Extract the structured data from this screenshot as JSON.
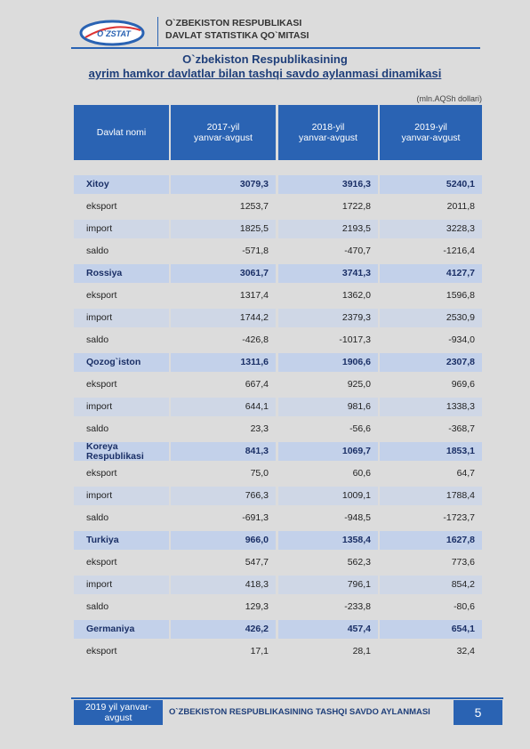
{
  "header": {
    "logo": "O`ZSTAT",
    "org_line1": "O`ZBEKISTON RESPUBLIKASI",
    "org_line2": "DAVLAT STATISTIKA QO`MITASI"
  },
  "title": {
    "line1": "O`zbekiston Respublikasining",
    "line2": "ayrim hamkor davlatlar bilan tashqi savdo aylanmasi dinamikasi"
  },
  "unit": "(mln.AQSh dollari)",
  "table": {
    "columns": [
      [
        "Davlat nomi"
      ],
      [
        "2017-yil",
        "yanvar-avgust"
      ],
      [
        "2018-yil",
        "yanvar-avgust"
      ],
      [
        "2019-yil",
        "yanvar-avgust"
      ]
    ],
    "rows": [
      [
        "Xitoy",
        "3079,3",
        "3916,3",
        "5240,1"
      ],
      [
        "eksport",
        "1253,7",
        "1722,8",
        "2011,8"
      ],
      [
        "import",
        "1825,5",
        "2193,5",
        "3228,3"
      ],
      [
        "saldo",
        "-571,8",
        "-470,7",
        "-1216,4"
      ],
      [
        "Rossiya",
        "3061,7",
        "3741,3",
        "4127,7"
      ],
      [
        "eksport",
        "1317,4",
        "1362,0",
        "1596,8"
      ],
      [
        "import",
        "1744,2",
        "2379,3",
        "2530,9"
      ],
      [
        "saldo",
        "-426,8",
        "-1017,3",
        "-934,0"
      ],
      [
        "Qozog`iston",
        "1311,6",
        "1906,6",
        "2307,8"
      ],
      [
        "eksport",
        "667,4",
        "925,0",
        "969,6"
      ],
      [
        "import",
        "644,1",
        "981,6",
        "1338,3"
      ],
      [
        "saldo",
        "23,3",
        "-56,6",
        "-368,7"
      ],
      [
        "Koreya Respublikasi",
        "841,3",
        "1069,7",
        "1853,1"
      ],
      [
        "eksport",
        "75,0",
        "60,6",
        "64,7"
      ],
      [
        "import",
        "766,3",
        "1009,1",
        "1788,4"
      ],
      [
        "saldo",
        "-691,3",
        "-948,5",
        "-1723,7"
      ],
      [
        "Turkiya",
        "966,0",
        "1358,4",
        "1627,8"
      ],
      [
        "eksport",
        "547,7",
        "562,3",
        "773,6"
      ],
      [
        "import",
        "418,3",
        "796,1",
        "854,2"
      ],
      [
        "saldo",
        "129,3",
        "-233,8",
        "-80,6"
      ],
      [
        "Germaniya",
        "426,2",
        "457,4",
        "654,1"
      ],
      [
        "eksport",
        "17,1",
        "28,1",
        "32,4"
      ]
    ]
  },
  "footer": {
    "period": "2019 yil yanvar-avgust",
    "title": "O`ZBEKISTON RESPUBLIKASINING TASHQI SAVDO AYLANMASI",
    "page": "5"
  }
}
